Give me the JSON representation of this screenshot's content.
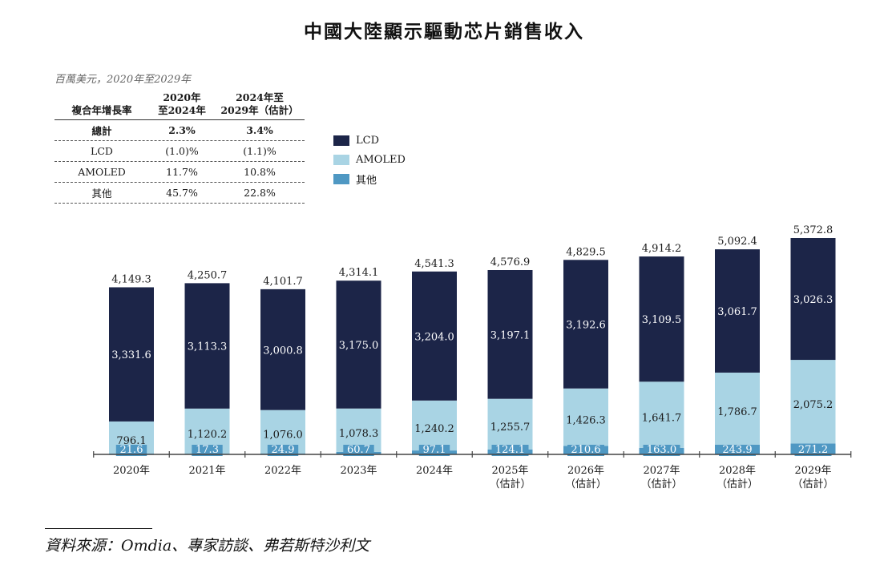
{
  "title": "中國大陸顯示驅動芯片銷售收入",
  "unit_note": "百萬美元，2020年至2029年",
  "cagr_table": {
    "header": [
      "複合年增長率",
      "2020年\n至2024年",
      "2024年至\n2029年（估計）"
    ],
    "header_col2_line1": "2020年",
    "header_col2_line2": "至2024年",
    "header_col3_line1": "2024年至",
    "header_col3_line2": "2029年（估計）",
    "rows": [
      {
        "label": "總計",
        "p1": "2.3%",
        "p2": "3.4%"
      },
      {
        "label": "LCD",
        "p1": "(1.0)%",
        "p2": "(1.1)%"
      },
      {
        "label": "AMOLED",
        "p1": "11.7%",
        "p2": "10.8%"
      },
      {
        "label": "其他",
        "p1": "45.7%",
        "p2": "22.8%"
      }
    ]
  },
  "colors": {
    "LCD": "#1c2548",
    "AMOLED": "#a9d4e4",
    "other": "#4f98c3"
  },
  "source": "資料來源：Omdia、專家訪談、弗若斯特沙利文",
  "chart_data": {
    "type": "bar",
    "stacked": true,
    "title": "中國大陸顯示驅動芯片銷售收入",
    "ylabel": "百萬美元",
    "legend_position": "top-center",
    "categories": [
      "2020年",
      "2021年",
      "2022年",
      "2023年",
      "2024年",
      "2025年",
      "2026年",
      "2027年",
      "2028年",
      "2029年"
    ],
    "category_sublabels": [
      "",
      "",
      "",
      "",
      "",
      "（估計）",
      "（估計）",
      "（估計）",
      "（估計）",
      "（估計）"
    ],
    "series": [
      {
        "name": "其他",
        "labels": [
          "21.6",
          "17.3",
          "24.9",
          "60.7",
          "97.1",
          "124.1",
          "210.6",
          "163.0",
          "243.9",
          "271.2"
        ],
        "values": [
          21.6,
          17.3,
          24.9,
          60.7,
          97.1,
          124.1,
          210.6,
          163.0,
          243.9,
          271.2
        ]
      },
      {
        "name": "AMOLED",
        "labels": [
          "796.1",
          "1,120.2",
          "1,076.0",
          "1,078.3",
          "1,240.2",
          "1,255.7",
          "1,426.3",
          "1,641.7",
          "1,786.7",
          "2,075.2"
        ],
        "values": [
          796.1,
          1120.2,
          1076.0,
          1078.3,
          1240.2,
          1255.7,
          1426.3,
          1641.7,
          1786.7,
          2075.2
        ]
      },
      {
        "name": "LCD",
        "labels": [
          "3,331.6",
          "3,113.3",
          "3,000.8",
          "3,175.0",
          "3,204.0",
          "3,197.1",
          "3,192.6",
          "3,109.5",
          "3,061.7",
          "3,026.3"
        ],
        "values": [
          3331.6,
          3113.3,
          3000.8,
          3175.0,
          3204.0,
          3197.1,
          3192.6,
          3109.5,
          3061.7,
          3026.3
        ]
      }
    ],
    "totals": [
      4149.3,
      4250.7,
      4101.7,
      4314.1,
      4541.3,
      4576.9,
      4829.5,
      4914.2,
      5092.4,
      5372.8
    ],
    "total_labels": [
      "4,149.3",
      "4,250.7",
      "4,101.7",
      "4,314.1",
      "4,541.3",
      "4,576.9",
      "4,829.5",
      "4,914.2",
      "5,092.4",
      "5,372.8"
    ],
    "legend": [
      "LCD",
      "AMOLED",
      "其他"
    ],
    "ylim": [
      0,
      5400
    ],
    "grid": false
  }
}
